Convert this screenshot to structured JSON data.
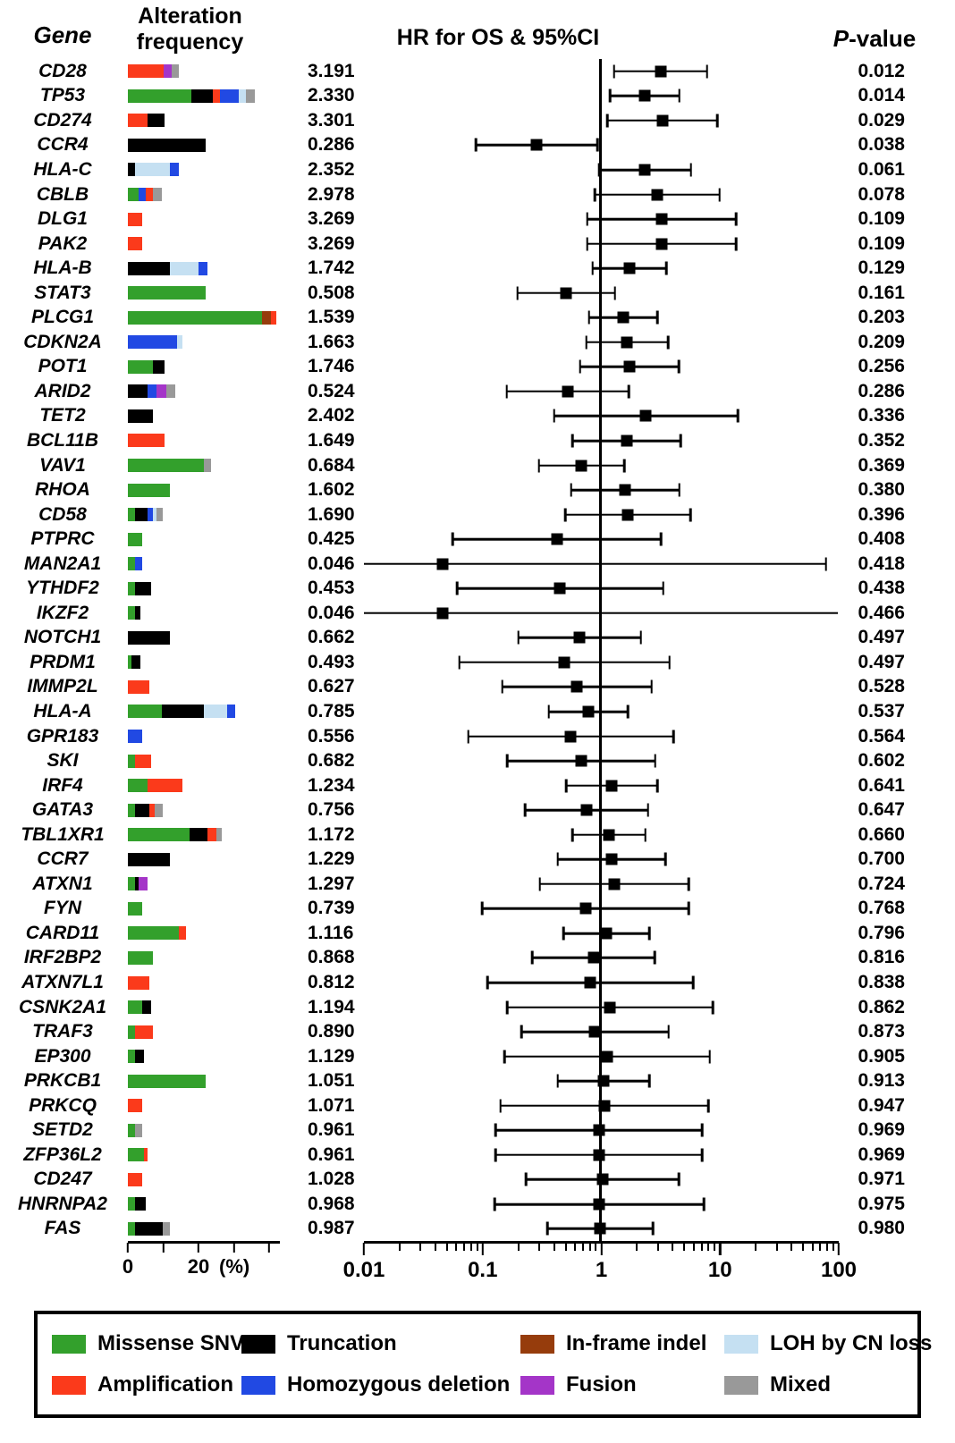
{
  "header": {
    "gene": "Gene",
    "alteration_line1": "Alteration",
    "alteration_line2": "frequency",
    "hr_title": "HR for OS & 95%CI",
    "p_italic": "P",
    "p_rest": "-value"
  },
  "colors": {
    "missense": "#33a02c",
    "truncation": "#000000",
    "inframe": "#963c0c",
    "loh": "#c5e0f2",
    "amplification": "#fb3a1b",
    "homdel": "#2149e3",
    "fusion": "#a435c8",
    "mixed": "#999999"
  },
  "legend": {
    "items": [
      {
        "label": "Missense SNV",
        "color_key": "missense"
      },
      {
        "label": "Truncation",
        "color_key": "truncation"
      },
      {
        "label": "In-frame indel",
        "color_key": "inframe"
      },
      {
        "label": "LOH by CN loss",
        "color_key": "loh"
      },
      {
        "label": "Amplification",
        "color_key": "amplification"
      },
      {
        "label": "Homozygous deletion",
        "color_key": "homdel"
      },
      {
        "label": "Fusion",
        "color_key": "fusion"
      },
      {
        "label": "Mixed",
        "color_key": "mixed"
      }
    ]
  },
  "chart_data": {
    "type": "forest-plot-with-stacked-bars",
    "title": "HR for OS & 95%CI",
    "hr_axis": {
      "scale": "log",
      "min": 0.01,
      "max": 100,
      "major_ticks": [
        0.01,
        0.1,
        1,
        10,
        100
      ],
      "labels": [
        "0.01",
        "0.1",
        "1",
        "10",
        "100"
      ],
      "reference_line": 1
    },
    "freq_axis": {
      "tick_positions_pct": [
        0,
        10,
        20,
        30,
        40
      ],
      "labeled_ticks": [
        {
          "pct": 0,
          "label": "0"
        },
        {
          "pct": 20,
          "label": "20"
        }
      ],
      "unit_label": "(%)"
    },
    "genes": [
      {
        "name": "CD28",
        "hr": "3.191",
        "ci": [
          1.29,
          7.89
        ],
        "p": "0.012",
        "bar": [
          [
            "amplification",
            10
          ],
          [
            "fusion",
            2.5
          ],
          [
            "mixed",
            2
          ]
        ]
      },
      {
        "name": "TP53",
        "hr": "2.330",
        "ci": [
          1.19,
          4.58
        ],
        "p": "0.014",
        "bar": [
          [
            "missense",
            18
          ],
          [
            "truncation",
            6
          ],
          [
            "amplification",
            2
          ],
          [
            "homdel",
            5.5
          ],
          [
            "loh",
            2
          ],
          [
            "mixed",
            2.5
          ]
        ]
      },
      {
        "name": "CD274",
        "hr": "3.301",
        "ci": [
          1.13,
          9.65
        ],
        "p": "0.029",
        "bar": [
          [
            "amplification",
            5.5
          ],
          [
            "truncation",
            5
          ]
        ]
      },
      {
        "name": "CCR4",
        "hr": "0.286",
        "ci": [
          0.088,
          0.933
        ],
        "p": "0.038",
        "bar": [
          [
            "truncation",
            22
          ]
        ]
      },
      {
        "name": "HLA-C",
        "hr": "2.352",
        "ci": [
          0.961,
          5.76
        ],
        "p": "0.061",
        "bar": [
          [
            "truncation",
            2
          ],
          [
            "loh",
            10
          ],
          [
            "homdel",
            2.5
          ]
        ]
      },
      {
        "name": "CBLB",
        "hr": "2.978",
        "ci": [
          0.885,
          10.02
        ],
        "p": "0.078",
        "bar": [
          [
            "missense",
            3
          ],
          [
            "homdel",
            2
          ],
          [
            "amplification",
            2
          ],
          [
            "mixed",
            2.5
          ]
        ]
      },
      {
        "name": "DLG1",
        "hr": "3.269",
        "ci": [
          0.768,
          13.9
        ],
        "p": "0.109",
        "bar": [
          [
            "amplification",
            4
          ]
        ]
      },
      {
        "name": "PAK2",
        "hr": "3.269",
        "ci": [
          0.768,
          13.9
        ],
        "p": "0.109",
        "bar": [
          [
            "amplification",
            4
          ]
        ]
      },
      {
        "name": "HLA-B",
        "hr": "1.742",
        "ci": [
          0.85,
          3.57
        ],
        "p": "0.129",
        "bar": [
          [
            "truncation",
            12
          ],
          [
            "loh",
            8
          ],
          [
            "homdel",
            2.5
          ]
        ]
      },
      {
        "name": "STAT3",
        "hr": "0.508",
        "ci": [
          0.197,
          1.31
        ],
        "p": "0.161",
        "bar": [
          [
            "missense",
            22
          ]
        ]
      },
      {
        "name": "PLCG1",
        "hr": "1.539",
        "ci": [
          0.792,
          2.99
        ],
        "p": "0.203",
        "bar": [
          [
            "missense",
            38
          ],
          [
            "inframe",
            2.5
          ],
          [
            "amplification",
            1.5
          ]
        ]
      },
      {
        "name": "CDKN2A",
        "hr": "1.663",
        "ci": [
          0.752,
          3.68
        ],
        "p": "0.209",
        "bar": [
          [
            "homdel",
            14
          ],
          [
            "loh",
            1.5
          ]
        ]
      },
      {
        "name": "POT1",
        "hr": "1.746",
        "ci": [
          0.667,
          4.57
        ],
        "p": "0.256",
        "bar": [
          [
            "missense",
            7
          ],
          [
            "truncation",
            3.5
          ]
        ]
      },
      {
        "name": "ARID2",
        "hr": "0.524",
        "ci": [
          0.16,
          1.72
        ],
        "p": "0.286",
        "bar": [
          [
            "truncation",
            5.5
          ],
          [
            "homdel",
            2.5
          ],
          [
            "fusion",
            3
          ],
          [
            "mixed",
            2.5
          ]
        ]
      },
      {
        "name": "TET2",
        "hr": "2.402",
        "ci": [
          0.403,
          14.3
        ],
        "p": "0.336",
        "bar": [
          [
            "truncation",
            7
          ]
        ]
      },
      {
        "name": "BCL11B",
        "hr": "1.649",
        "ci": [
          0.575,
          4.73
        ],
        "p": "0.352",
        "bar": [
          [
            "amplification",
            10.5
          ]
        ]
      },
      {
        "name": "VAV1",
        "hr": "0.684",
        "ci": [
          0.299,
          1.57
        ],
        "p": "0.369",
        "bar": [
          [
            "missense",
            21.5
          ],
          [
            "mixed",
            2
          ]
        ]
      },
      {
        "name": "RHOA",
        "hr": "1.602",
        "ci": [
          0.559,
          4.59
        ],
        "p": "0.380",
        "bar": [
          [
            "missense",
            12
          ]
        ]
      },
      {
        "name": "CD58",
        "hr": "1.690",
        "ci": [
          0.503,
          5.68
        ],
        "p": "0.396",
        "bar": [
          [
            "missense",
            2
          ],
          [
            "truncation",
            3.5
          ],
          [
            "homdel",
            1.5
          ],
          [
            "loh",
            1
          ],
          [
            "mixed",
            2
          ]
        ]
      },
      {
        "name": "PTPRC",
        "hr": "0.425",
        "ci": [
          0.056,
          3.23
        ],
        "p": "0.408",
        "bar": [
          [
            "missense",
            4
          ]
        ]
      },
      {
        "name": "MAN2A1",
        "hr": "0.046",
        "ci": [
          2.66e-05,
          79.2
        ],
        "p": "0.418",
        "bar": [
          [
            "missense",
            2
          ],
          [
            "homdel",
            2
          ]
        ]
      },
      {
        "name": "YTHDF2",
        "hr": "0.453",
        "ci": [
          0.061,
          3.35
        ],
        "p": "0.438",
        "bar": [
          [
            "missense",
            2
          ],
          [
            "truncation",
            4.5
          ]
        ]
      },
      {
        "name": "IKZF2",
        "hr": "0.046",
        "ci": [
          1.17e-05,
          181
        ],
        "p": "0.466",
        "bar": [
          [
            "missense",
            2
          ],
          [
            "truncation",
            1.5
          ]
        ]
      },
      {
        "name": "NOTCH1",
        "hr": "0.662",
        "ci": [
          0.201,
          2.18
        ],
        "p": "0.497",
        "bar": [
          [
            "truncation",
            12
          ]
        ]
      },
      {
        "name": "PRDM1",
        "hr": "0.493",
        "ci": [
          0.064,
          3.8
        ],
        "p": "0.497",
        "bar": [
          [
            "missense",
            1
          ],
          [
            "truncation",
            2.5
          ]
        ]
      },
      {
        "name": "IMMP2L",
        "hr": "0.627",
        "ci": [
          0.147,
          2.67
        ],
        "p": "0.528",
        "bar": [
          [
            "amplification",
            6
          ]
        ]
      },
      {
        "name": "HLA-A",
        "hr": "0.785",
        "ci": [
          0.364,
          1.69
        ],
        "p": "0.537",
        "bar": [
          [
            "missense",
            9.5
          ],
          [
            "truncation",
            12
          ],
          [
            "loh",
            6.5
          ],
          [
            "homdel",
            2.5
          ]
        ]
      },
      {
        "name": "GPR183",
        "hr": "0.556",
        "ci": [
          0.076,
          4.09
        ],
        "p": "0.564",
        "bar": [
          [
            "homdel",
            4
          ]
        ]
      },
      {
        "name": "SKI",
        "hr": "0.682",
        "ci": [
          0.162,
          2.87
        ],
        "p": "0.602",
        "bar": [
          [
            "missense",
            2
          ],
          [
            "amplification",
            4.5
          ]
        ]
      },
      {
        "name": "IRF4",
        "hr": "1.234",
        "ci": [
          0.51,
          2.99
        ],
        "p": "0.641",
        "bar": [
          [
            "missense",
            5.5
          ],
          [
            "amplification",
            10
          ]
        ]
      },
      {
        "name": "GATA3",
        "hr": "0.756",
        "ci": [
          0.228,
          2.5
        ],
        "p": "0.647",
        "bar": [
          [
            "missense",
            2
          ],
          [
            "truncation",
            4
          ],
          [
            "amplification",
            1.5
          ],
          [
            "mixed",
            2.5
          ]
        ]
      },
      {
        "name": "TBL1XR1",
        "hr": "1.172",
        "ci": [
          0.578,
          2.38
        ],
        "p": "0.660",
        "bar": [
          [
            "missense",
            17.5
          ],
          [
            "truncation",
            5
          ],
          [
            "amplification",
            2.5
          ],
          [
            "mixed",
            1.5
          ]
        ]
      },
      {
        "name": "CCR7",
        "hr": "1.229",
        "ci": [
          0.431,
          3.51
        ],
        "p": "0.700",
        "bar": [
          [
            "truncation",
            12
          ]
        ]
      },
      {
        "name": "ATXN1",
        "hr": "1.297",
        "ci": [
          0.306,
          5.49
        ],
        "p": "0.724",
        "bar": [
          [
            "missense",
            2
          ],
          [
            "truncation",
            1
          ],
          [
            "fusion",
            2.5
          ]
        ]
      },
      {
        "name": "FYN",
        "hr": "0.739",
        "ci": [
          0.099,
          5.51
        ],
        "p": "0.768",
        "bar": [
          [
            "missense",
            4
          ]
        ]
      },
      {
        "name": "CARD11",
        "hr": "1.116",
        "ci": [
          0.486,
          2.56
        ],
        "p": "0.796",
        "bar": [
          [
            "missense",
            14.5
          ],
          [
            "amplification",
            2
          ]
        ]
      },
      {
        "name": "IRF2BP2",
        "hr": "0.868",
        "ci": [
          0.263,
          2.86
        ],
        "p": "0.816",
        "bar": [
          [
            "missense",
            7
          ]
        ]
      },
      {
        "name": "ATXN7L1",
        "hr": "0.812",
        "ci": [
          0.11,
          5.98
        ],
        "p": "0.838",
        "bar": [
          [
            "amplification",
            6
          ]
        ]
      },
      {
        "name": "CSNK2A1",
        "hr": "1.194",
        "ci": [
          0.162,
          8.82
        ],
        "p": "0.862",
        "bar": [
          [
            "missense",
            4
          ],
          [
            "truncation",
            2.5
          ]
        ]
      },
      {
        "name": "TRAF3",
        "hr": "0.890",
        "ci": [
          0.213,
          3.72
        ],
        "p": "0.873",
        "bar": [
          [
            "missense",
            2
          ],
          [
            "amplification",
            5
          ]
        ]
      },
      {
        "name": "EP300",
        "hr": "1.129",
        "ci": [
          0.154,
          8.28
        ],
        "p": "0.905",
        "bar": [
          [
            "missense",
            2
          ],
          [
            "truncation",
            2.5
          ]
        ]
      },
      {
        "name": "PRKCB1",
        "hr": "1.051",
        "ci": [
          0.431,
          2.56
        ],
        "p": "0.913",
        "bar": [
          [
            "missense",
            22
          ]
        ]
      },
      {
        "name": "PRKCQ",
        "hr": "1.071",
        "ci": [
          0.142,
          8.09
        ],
        "p": "0.947",
        "bar": [
          [
            "amplification",
            4
          ]
        ]
      },
      {
        "name": "SETD2",
        "hr": "0.961",
        "ci": [
          0.129,
          7.14
        ],
        "p": "0.969",
        "bar": [
          [
            "missense",
            2
          ],
          [
            "mixed",
            2
          ]
        ]
      },
      {
        "name": "ZFP36L2",
        "hr": "0.961",
        "ci": [
          0.129,
          7.14
        ],
        "p": "0.969",
        "bar": [
          [
            "missense",
            4.5
          ],
          [
            "amplification",
            1
          ]
        ]
      },
      {
        "name": "CD247",
        "hr": "1.028",
        "ci": [
          0.233,
          4.54
        ],
        "p": "0.971",
        "bar": [
          [
            "amplification",
            4
          ]
        ]
      },
      {
        "name": "HNRNPA2",
        "hr": "0.968",
        "ci": [
          0.127,
          7.41
        ],
        "p": "0.975",
        "bar": [
          [
            "missense",
            2
          ],
          [
            "truncation",
            3
          ]
        ]
      },
      {
        "name": "FAS",
        "hr": "0.987",
        "ci": [
          0.355,
          2.75
        ],
        "p": "0.980",
        "bar": [
          [
            "missense",
            2
          ],
          [
            "truncation",
            8
          ],
          [
            "mixed",
            2
          ]
        ]
      }
    ]
  }
}
